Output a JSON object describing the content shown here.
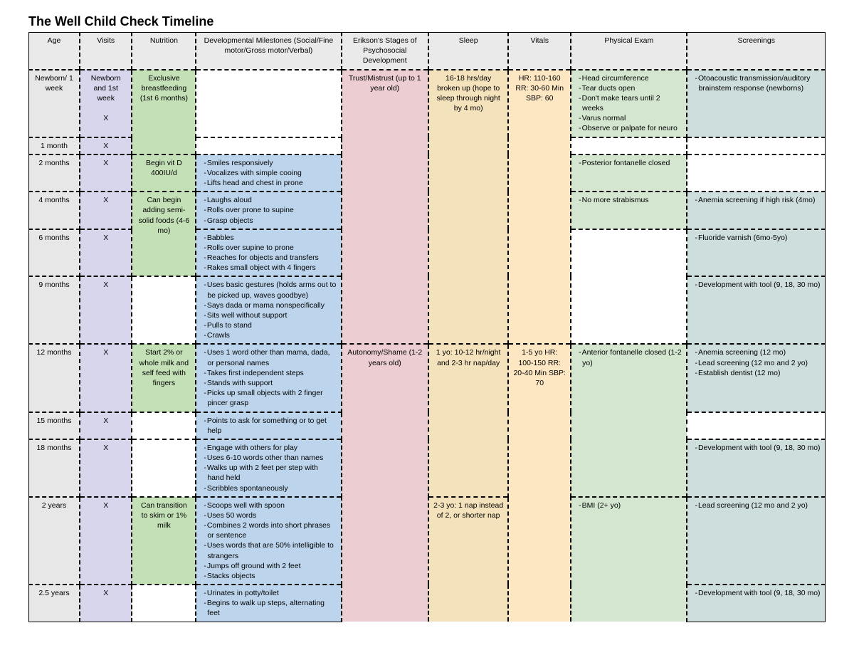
{
  "title": "The Well Child Check Timeline",
  "colors": {
    "age": "#e7e7e7",
    "visits": "#d8d6ed",
    "nutrition": "#c4e0b6",
    "dev": "#bcd5ed",
    "erikson": "#ebcdd2",
    "sleep": "#f3e2bb",
    "vitals": "#fce7c2",
    "phys": "#d4e6d0",
    "screen": "#cddedd",
    "header": "#eaeaea",
    "border": "#000000",
    "bg": "#ffffff"
  },
  "columns": [
    {
      "key": "age",
      "label": "Age"
    },
    {
      "key": "visits",
      "label": "Visits"
    },
    {
      "key": "nutrition",
      "label": "Nutrition"
    },
    {
      "key": "dev",
      "label": "Developmental Milestones (Social/Fine motor/Gross motor/Verbal)"
    },
    {
      "key": "erikson",
      "label": "Erikson's Stages of Psychosocial Development"
    },
    {
      "key": "sleep",
      "label": "Sleep"
    },
    {
      "key": "vitals",
      "label": "Vitals"
    },
    {
      "key": "phys",
      "label": "Physical Exam"
    },
    {
      "key": "screen",
      "label": "Screenings"
    }
  ],
  "x_mark": "X",
  "rows": {
    "newborn": {
      "age": "Newborn/ 1 week",
      "visits": "Newborn and 1st week",
      "nutrition": "Exclusive breastfeeding (1st 6 months)",
      "erikson": "Trust/Mistrust (up to 1 year old)",
      "sleep": "16-18 hrs/day broken up (hope to sleep through night by 4 mo)",
      "vitals": "HR: 110-160 RR: 30-60 Min SBP: 60",
      "phys": [
        "Head circumference",
        "Tear ducts open",
        "Don't make tears until 2 weeks",
        "Varus normal",
        "Observe or palpate for neuro"
      ],
      "screen": [
        "Otoacoustic transmission/auditory brainstem response (newborns)"
      ]
    },
    "m1": {
      "age": "1 month"
    },
    "m2": {
      "age": "2 months",
      "nutrition": "Begin vit D 400IU/d",
      "dev": [
        "Smiles responsively",
        "Vocalizes with simple cooing",
        "Lifts head and chest in prone"
      ],
      "phys": [
        "Posterior fontanelle closed"
      ]
    },
    "m4": {
      "age": "4 months",
      "nutrition": "Can begin adding semi-solid foods (4-6 mo)",
      "dev": [
        "Laughs aloud",
        "Rolls over prone to supine",
        "Grasp objects"
      ],
      "phys": [
        "No more strabismus"
      ],
      "screen": [
        "Anemia screening if high risk (4mo)"
      ]
    },
    "m6": {
      "age": "6 months",
      "dev": [
        "Babbles",
        "Rolls over supine to prone",
        "Reaches for objects and transfers",
        "Rakes small object with 4 fingers"
      ],
      "screen": [
        "Fluoride varnish (6mo-5yo)"
      ]
    },
    "m9": {
      "age": "9 months",
      "dev": [
        "Uses basic gestures (holds arms out to be picked up, waves goodbye)",
        "Says dada or mama nonspecifically",
        "Sits well without support",
        "Pulls to stand",
        "Crawls"
      ],
      "screen": [
        "Development with tool (9, 18, 30 mo)"
      ]
    },
    "m12": {
      "age": "12 months",
      "nutrition": "Start 2% or whole milk and self feed with fingers",
      "dev": [
        "Uses 1 word other than mama, dada, or personal names",
        "Takes first independent steps",
        "Stands with support",
        "Picks up small objects with 2 finger pincer grasp"
      ],
      "erikson": "Autonomy/Shame (1-2 years old)",
      "sleep": "1 yo: 10-12 hr/night and 2-3 hr nap/day",
      "vitals": "1-5 yo HR: 100-150 RR: 20-40 Min SBP: 70",
      "phys": [
        "Anterior fontanelle closed (1-2 yo)"
      ],
      "screen": [
        "Anemia screening (12 mo)",
        "Lead screening (12 mo and 2 yo)",
        "Establish dentist (12 mo)"
      ]
    },
    "m15": {
      "age": "15 months",
      "dev": [
        "Points to ask for something or to get help"
      ]
    },
    "m18": {
      "age": "18 months",
      "dev": [
        "Engage with others for play",
        "Uses 6-10 words other than names",
        "Walks up with 2 feet per step with hand held",
        "Scribbles spontaneously"
      ],
      "screen": [
        "Development with tool (9, 18, 30 mo)"
      ]
    },
    "y2": {
      "age": "2 years",
      "nutrition": "Can transition to skim or 1% milk",
      "dev": [
        "Scoops well with spoon",
        "Uses 50 words",
        "Combines 2 words into short phrases or sentence",
        "Uses words that are 50% intelligible to strangers",
        "Jumps off ground with 2 feet",
        "Stacks objects"
      ],
      "sleep": "2-3 yo: 1 nap instead of 2, or shorter nap",
      "phys": [
        "BMI (2+ yo)"
      ],
      "screen": [
        "Lead screening (12 mo and 2 yo)"
      ]
    },
    "y25": {
      "age": "2.5 years",
      "dev": [
        "Urinates in potty/toilet",
        "Begins to walk up steps, alternating feet"
      ],
      "screen": [
        "Development with tool (9, 18, 30 mo)"
      ]
    }
  }
}
